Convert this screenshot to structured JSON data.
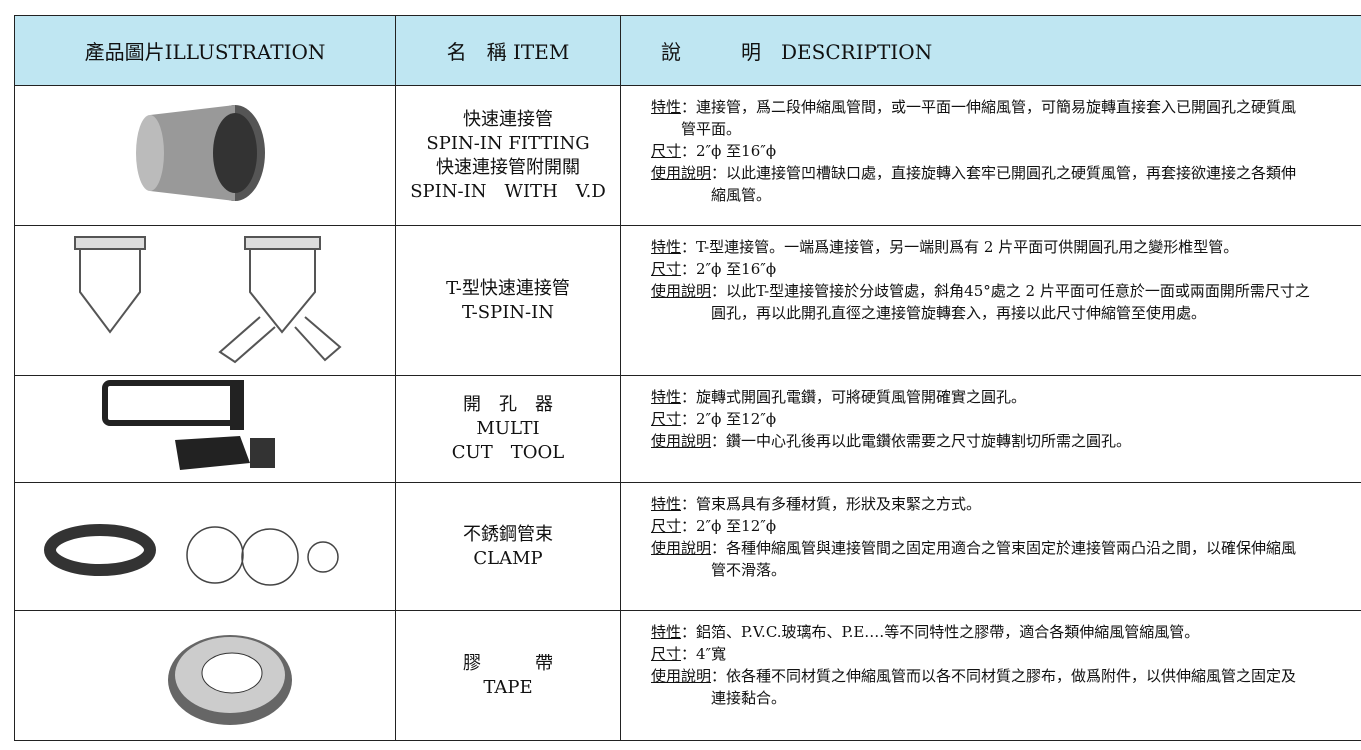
{
  "header": {
    "illustration": "產品圖片ILLUSTRATION",
    "item": "名　稱 ITEM",
    "description": "說　　　明　DESCRIPTION"
  },
  "rows": [
    {
      "item": [
        "快速連接管",
        "SPIN-IN FITTING",
        "快速連接管附開關",
        "SPIN-IN　WITH　V.D"
      ],
      "description": [
        {
          "label": "特性",
          "text": "：連接管，爲二段伸縮風管間，或一平面一伸縮風管，可簡易旋轉直接套入已開圓孔之硬質風管平面。"
        },
        {
          "label": "尺寸",
          "text": "：2″ϕ 至16″ϕ"
        },
        {
          "label": "使用說明",
          "text": "：以此連接管凹槽缺口處，直接旋轉入套牢已開圓孔之硬質風管，再套接欲連接之各類伸縮風管。"
        }
      ]
    },
    {
      "item": [
        "T-型快速連接管",
        "T-SPIN-IN"
      ],
      "description": [
        {
          "label": "特性",
          "text": "：T-型連接管。一端爲連接管，另一端則爲有 2 片平面可供開圓孔用之變形椎型管。"
        },
        {
          "label": "尺寸",
          "text": "：2″ϕ 至16″ϕ"
        },
        {
          "label": "使用說明",
          "text": "：以此T-型連接管接於分歧管處，斜角45°處之 2 片平面可任意於一面或兩面開所需尺寸之圓孔，再以此開孔直徑之連接管旋轉套入，再接以此尺寸伸縮管至使用處。"
        }
      ]
    },
    {
      "item": [
        "開　孔　器",
        "MULTI",
        "CUT　TOOL"
      ],
      "description": [
        {
          "label": "特性",
          "text": "：旋轉式開圓孔電鑽，可將硬質風管開確實之圓孔。"
        },
        {
          "label": "尺寸",
          "text": "：2″ϕ 至12″ϕ"
        },
        {
          "label": "使用說明",
          "text": "：鑽一中心孔後再以此電鑽依需要之尺寸旋轉割切所需之圓孔。"
        }
      ]
    },
    {
      "item": [
        "不銹鋼管束",
        "CLAMP"
      ],
      "description": [
        {
          "label": "特性",
          "text": "：管束爲具有多種材質，形狀及束緊之方式。"
        },
        {
          "label": "尺寸",
          "text": "：2″ϕ 至12″ϕ"
        },
        {
          "label": "使用說明",
          "text": "：各種伸縮風管與連接管間之固定用適合之管束固定於連接管兩凸沿之間，以確保伸縮風管不滑落。"
        }
      ]
    },
    {
      "item": [
        "膠　　　帶",
        "TAPE"
      ],
      "description": [
        {
          "label": "特性",
          "text": "：鋁箔、P.V.C.玻璃布、P.E‥‥等不同特性之膠帶，適合各類伸縮風管縮風管。"
        },
        {
          "label": "尺寸",
          "text": "：4″寬"
        },
        {
          "label": "使用說明",
          "text": "：依各種不同材質之伸縮風管而以各不同材質之膠布，做爲附件，以供伸縮風管之固定及連接黏合。"
        }
      ]
    }
  ]
}
